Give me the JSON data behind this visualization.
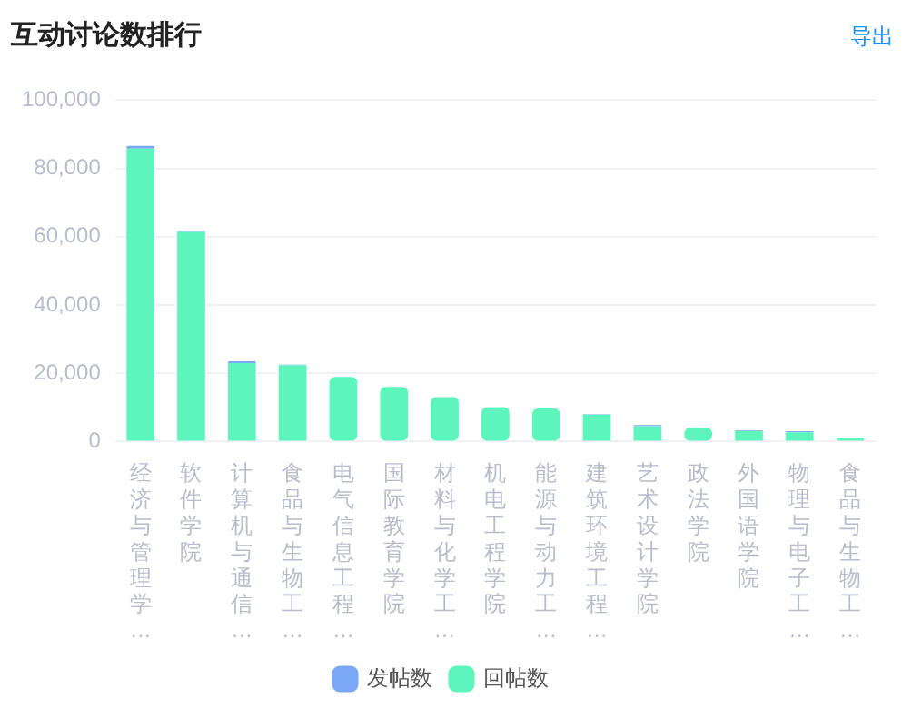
{
  "chart_data": {
    "type": "bar",
    "title": "互动讨论数排行",
    "annotations": [
      "导出"
    ],
    "stacked": true,
    "categories": [
      "经济与管理学…",
      "软件学院",
      "计算机与通信…",
      "食品与生物工…",
      "电气信息工程…",
      "国际教育学院",
      "材料与化学工…",
      "机电工程学院",
      "能源与动力工…",
      "建筑环境工程…",
      "艺术设计学院",
      "政法学院",
      "外国语学院",
      "物理与电子工…",
      "食品与生物工…"
    ],
    "series": [
      {
        "name": "回帖数",
        "color": "#5ef5bd",
        "values": [
          85800,
          61400,
          23000,
          22300,
          18900,
          16000,
          13000,
          10100,
          9700,
          7900,
          4500,
          4000,
          3000,
          2700,
          1100
        ]
      },
      {
        "name": "发帖数",
        "color": "#7aa7f7",
        "values": [
          800,
          300,
          500,
          200,
          null,
          null,
          null,
          null,
          null,
          100,
          300,
          null,
          200,
          300,
          null
        ]
      }
    ],
    "ylim": [
      0,
      100000
    ],
    "yticks": [
      0,
      {
        "value": 20000,
        "label": "20,000"
      },
      {
        "value": 40000,
        "label": "40,000"
      },
      {
        "value": 60000,
        "label": "60,000"
      },
      {
        "value": 80000,
        "label": "80,000"
      },
      {
        "value": 100000,
        "label": "100,000"
      }
    ],
    "grid": "y",
    "legend": "bottom"
  }
}
